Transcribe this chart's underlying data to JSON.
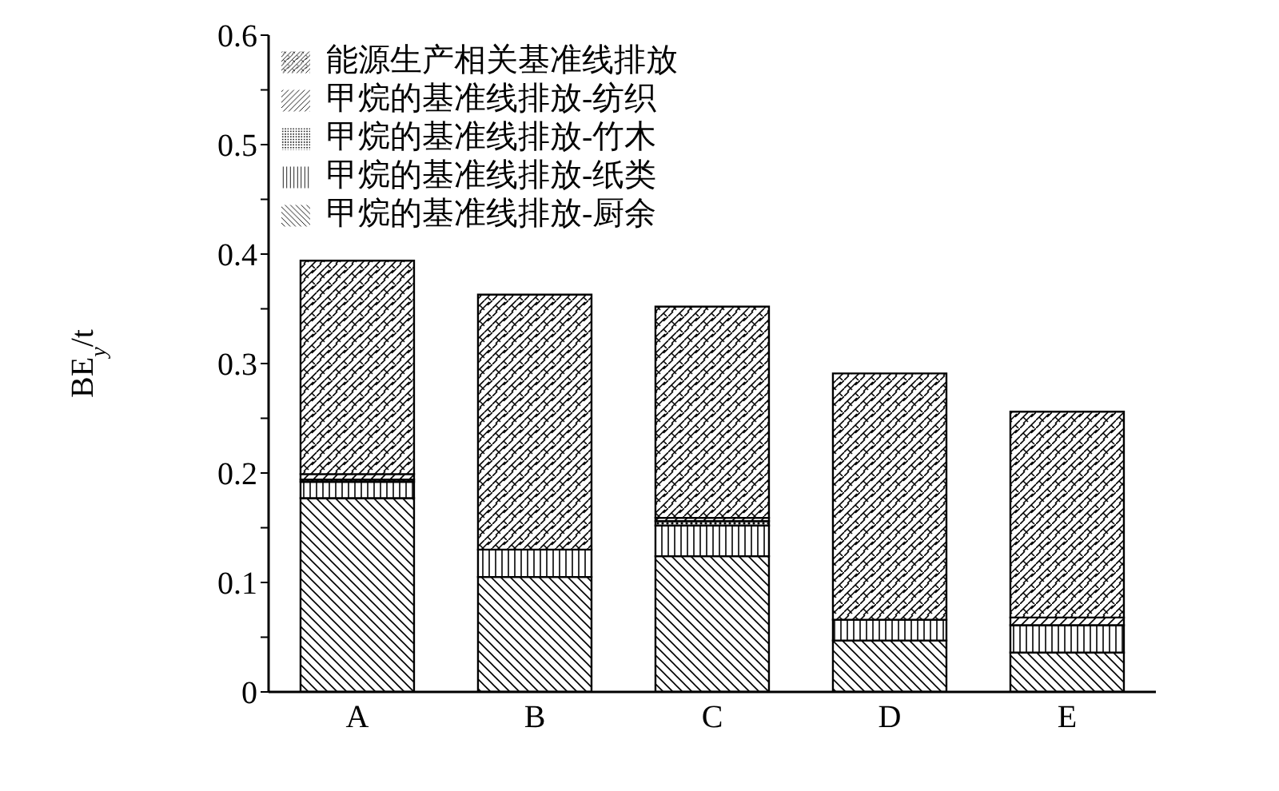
{
  "chart_data": {
    "type": "bar",
    "stacked": true,
    "ylabel": "BE$_{y}$/t",
    "categories": [
      "A",
      "B",
      "C",
      "D",
      "E"
    ],
    "ylim": [
      0,
      0.6
    ],
    "yticks": [
      0,
      {
        "value": 0.05,
        "label": null
      },
      0.1,
      {
        "value": 0.15,
        "label": null
      },
      0.2,
      {
        "value": 0.25,
        "label": null
      },
      0.3,
      {
        "value": 0.35,
        "label": null
      },
      0.4,
      {
        "value": 0.45,
        "label": null
      },
      0.5,
      {
        "value": 0.55,
        "label": null
      },
      0.6
    ],
    "legend": "top left",
    "grid": false,
    "series": [
      {
        "name": "甲烷的基准线排放-厨余",
        "color": "#000000",
        "values": [
          0.177,
          0.105,
          0.124,
          0.047,
          0.036
        ]
      },
      {
        "name": "甲烷的基准线排放-纸类",
        "color": "#000000",
        "values": [
          0.015,
          0.025,
          0.028,
          0.019,
          0.025
        ]
      },
      {
        "name": "甲烷的基准线排放-竹木",
        "color": "#000000",
        "values": [
          0.002,
          0,
          0.004,
          0,
          0
        ]
      },
      {
        "name": "甲烷的基准线排放-纺织",
        "color": "#000000",
        "values": [
          0.005,
          0,
          0.003,
          0,
          0.007
        ]
      },
      {
        "name": "能源生产相关基准线排放",
        "color": "#000000",
        "values": [
          0.195,
          0.233,
          0.193,
          0.225,
          0.188
        ]
      }
    ]
  }
}
